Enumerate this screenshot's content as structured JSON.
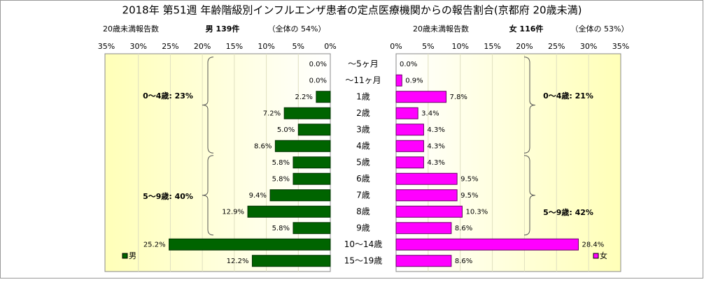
{
  "chart_data": {
    "type": "pyramid",
    "title": "2018年 第51週 年齢階級別インフルエンザ患者の定点医療機関からの報告割合(京都府 20歳未満)",
    "categories": [
      "～5ヶ月",
      "～11ヶ月",
      "1歳",
      "2歳",
      "3歳",
      "4歳",
      "5歳",
      "6歳",
      "7歳",
      "8歳",
      "9歳",
      "10～14歳",
      "15～19歳"
    ],
    "xlim": [
      0,
      35
    ],
    "xticks": [
      {
        "value": 0,
        "label": "0%"
      },
      {
        "value": 5,
        "label": "5%"
      },
      {
        "value": 10,
        "label": "10%"
      },
      {
        "value": 15,
        "label": "15%"
      },
      {
        "value": 20,
        "label": "20%"
      },
      {
        "value": 25,
        "label": "25%"
      },
      {
        "value": 30,
        "label": "30%"
      },
      {
        "value": 35,
        "label": "35%"
      }
    ],
    "grid": true,
    "series": [
      {
        "name": "男",
        "color": "#006400",
        "values": [
          0,
          0,
          2.2,
          7.2,
          5.0,
          8.6,
          5.8,
          5.8,
          9.4,
          12.9,
          5.8,
          25.2,
          12.2
        ],
        "value_labels": [
          "0.0%",
          "0.0%",
          "2.2%",
          "7.2%",
          "5.0%",
          "8.6%",
          "5.8%",
          "5.8%",
          "9.4%",
          "12.9%",
          "5.8%",
          "25.2%",
          "12.2%"
        ],
        "subtitle": "20歳未満報告数",
        "count_label": "男 139件",
        "share_label": "（全体の  54%）",
        "annotations": [
          "0～4歳: 23%",
          "5～9歳: 40%"
        ]
      },
      {
        "name": "女",
        "color": "#ff00ff",
        "values": [
          0,
          0.9,
          7.8,
          3.4,
          4.3,
          4.3,
          4.3,
          9.5,
          9.5,
          10.3,
          8.6,
          28.4,
          8.6
        ],
        "value_labels": [
          "0.0%",
          "0.9%",
          "7.8%",
          "3.4%",
          "4.3%",
          "4.3%",
          "4.3%",
          "9.5%",
          "9.5%",
          "10.3%",
          "8.6%",
          "28.4%",
          "8.6%"
        ],
        "subtitle": "20歳未満報告数",
        "count_label": "女 116件",
        "share_label": "（全体の  53%）",
        "annotations": [
          "0～4歳: 21%",
          "5～9歳: 42%"
        ]
      }
    ]
  }
}
